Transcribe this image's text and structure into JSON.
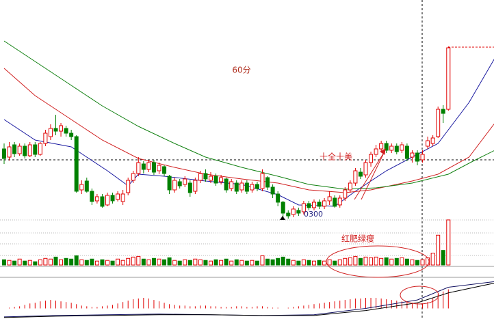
{
  "chart_data": {
    "type": "candlestick",
    "annotations": [
      "60分",
      "十全十美",
      "红肥绿瘦",
      "0300"
    ],
    "up_color": "#e00000",
    "down_color": "#008000",
    "open": [
      11.32,
      11.2,
      11.38,
      11.25,
      11.36,
      11.22,
      11.38,
      11.24,
      11.4,
      11.5,
      11.62,
      11.58,
      11.62,
      11.55,
      11.5,
      10.72,
      10.85,
      10.7,
      10.56,
      10.62,
      10.5,
      10.64,
      10.58,
      10.55,
      10.68,
      10.86,
      10.96,
      11.1,
      11.02,
      11.12,
      11.0,
      11.06,
      10.92,
      10.72,
      10.84,
      10.8,
      10.82,
      10.7,
      10.86,
      10.96,
      10.86,
      10.92,
      10.84,
      10.88,
      10.74,
      10.82,
      10.72,
      10.82,
      10.72,
      10.8,
      10.74,
      10.9,
      10.76,
      10.66,
      10.54,
      10.38,
      10.36,
      10.42,
      10.4,
      10.52,
      10.46,
      10.54,
      10.48,
      10.56,
      10.6,
      10.5,
      10.6,
      10.72,
      10.82,
      10.98,
      10.94,
      11.12,
      11.24,
      11.32,
      11.4,
      11.3,
      11.36,
      11.3,
      11.36,
      11.2,
      11.26,
      11.16,
      11.36,
      11.4,
      11.5,
      11.9,
      11.9
    ],
    "high": [
      11.4,
      11.42,
      11.42,
      11.4,
      11.4,
      11.42,
      11.42,
      11.42,
      11.6,
      11.68,
      11.82,
      11.7,
      11.66,
      11.6,
      11.52,
      10.86,
      10.9,
      10.74,
      10.66,
      10.66,
      10.68,
      10.68,
      10.7,
      10.72,
      10.9,
      11.0,
      11.2,
      11.14,
      11.16,
      11.16,
      11.12,
      11.08,
      10.94,
      10.9,
      10.88,
      10.92,
      10.86,
      10.9,
      11.0,
      11.02,
      10.98,
      10.96,
      10.94,
      10.9,
      10.88,
      10.86,
      10.86,
      10.86,
      10.84,
      10.84,
      11.02,
      10.92,
      10.8,
      10.7,
      10.56,
      10.42,
      10.48,
      10.46,
      10.56,
      10.56,
      10.58,
      10.58,
      10.6,
      10.7,
      10.64,
      10.64,
      10.76,
      10.86,
      11.04,
      11.04,
      11.16,
      11.28,
      11.38,
      11.44,
      11.44,
      11.4,
      11.4,
      11.42,
      11.4,
      11.3,
      11.3,
      11.3,
      11.5,
      11.52,
      11.94,
      11.96,
      12.82
    ],
    "low": [
      11.1,
      11.15,
      11.2,
      11.22,
      11.18,
      11.2,
      11.2,
      11.22,
      11.36,
      11.45,
      11.52,
      11.5,
      11.5,
      11.45,
      10.68,
      10.66,
      10.68,
      10.5,
      10.52,
      10.46,
      10.48,
      10.52,
      10.55,
      10.5,
      10.64,
      10.82,
      10.92,
      10.96,
      10.98,
      10.94,
      10.95,
      10.92,
      10.66,
      10.68,
      10.74,
      10.76,
      10.62,
      10.66,
      10.82,
      10.84,
      10.82,
      10.78,
      10.8,
      10.68,
      10.7,
      10.66,
      10.68,
      10.66,
      10.68,
      10.7,
      10.7,
      10.72,
      10.6,
      10.48,
      10.32,
      10.3,
      10.32,
      10.34,
      10.36,
      10.42,
      10.42,
      10.44,
      10.44,
      10.5,
      10.46,
      10.46,
      10.56,
      10.68,
      10.78,
      10.88,
      10.9,
      11.06,
      11.2,
      11.28,
      11.26,
      11.26,
      11.24,
      11.26,
      11.14,
      11.12,
      11.08,
      11.12,
      11.32,
      11.36,
      11.48,
      11.7,
      11.88
    ],
    "close": [
      11.18,
      11.35,
      11.25,
      11.36,
      11.22,
      11.38,
      11.24,
      11.4,
      11.55,
      11.62,
      11.58,
      11.66,
      11.55,
      11.5,
      10.7,
      10.8,
      10.7,
      10.55,
      10.62,
      10.48,
      10.64,
      10.56,
      10.66,
      10.66,
      10.86,
      10.96,
      11.12,
      11.02,
      11.12,
      10.98,
      11.08,
      10.96,
      10.72,
      10.86,
      10.78,
      10.88,
      10.68,
      10.86,
      10.96,
      10.88,
      10.92,
      10.82,
      10.9,
      10.72,
      10.84,
      10.7,
      10.82,
      10.7,
      10.8,
      10.74,
      10.96,
      10.76,
      10.66,
      10.54,
      10.38,
      10.34,
      10.44,
      10.38,
      10.52,
      10.46,
      10.54,
      10.48,
      10.56,
      10.62,
      10.48,
      10.6,
      10.72,
      10.82,
      11.0,
      10.92,
      11.12,
      11.24,
      11.32,
      11.4,
      11.3,
      11.36,
      11.28,
      11.38,
      11.18,
      11.26,
      11.14,
      11.24,
      11.44,
      11.48,
      11.9,
      11.84,
      12.8
    ],
    "volume": [
      8,
      7,
      6,
      9,
      6,
      7,
      5,
      8,
      10,
      9,
      12,
      8,
      10,
      9,
      14,
      8,
      7,
      9,
      6,
      8,
      7,
      6,
      9,
      7,
      10,
      12,
      13,
      9,
      8,
      10,
      9,
      8,
      11,
      7,
      6,
      8,
      7,
      9,
      8,
      7,
      6,
      8,
      7,
      9,
      6,
      8,
      7,
      6,
      7,
      6,
      14,
      9,
      8,
      10,
      12,
      9,
      7,
      6,
      8,
      7,
      6,
      7,
      6,
      8,
      6,
      8,
      10,
      11,
      13,
      10,
      12,
      11,
      12,
      10,
      11,
      9,
      10,
      11,
      9,
      8,
      7,
      8,
      11,
      18,
      45,
      22,
      68
    ],
    "ylim": [
      10.3,
      13.5
    ],
    "vlim": [
      0,
      70
    ],
    "ma": [
      {
        "color": "#1a1aa0",
        "x": [
          0,
          6,
          13,
          20,
          24,
          26,
          31,
          39,
          46,
          53,
          57,
          64,
          68,
          74,
          79,
          84,
          90,
          95
        ],
        "values": [
          11.75,
          11.45,
          11.35,
          11.0,
          10.78,
          10.95,
          10.92,
          10.85,
          10.8,
          10.65,
          10.5,
          10.48,
          10.7,
          11.0,
          11.2,
          11.4,
          12.0,
          12.65
        ]
      },
      {
        "color": "#d02020",
        "x": [
          0,
          6,
          13,
          19,
          26,
          33,
          39,
          46,
          53,
          59,
          66,
          71,
          79,
          84,
          90,
          95
        ],
        "values": [
          12.5,
          12.1,
          11.75,
          11.45,
          11.18,
          11.05,
          10.95,
          10.88,
          10.82,
          10.72,
          10.68,
          10.72,
          10.85,
          10.95,
          11.2,
          11.7
        ]
      },
      {
        "color": "#108010",
        "x": [
          0,
          6,
          13,
          19,
          26,
          33,
          39,
          46,
          53,
          59,
          66,
          72,
          79,
          86,
          91,
          95
        ],
        "values": [
          12.9,
          12.6,
          12.25,
          11.95,
          11.65,
          11.4,
          11.2,
          11.05,
          10.92,
          10.8,
          10.73,
          10.75,
          10.82,
          10.95,
          11.15,
          11.3
        ]
      }
    ],
    "macd_hist": [
      0,
      1,
      2,
      3,
      5,
      7,
      8,
      10,
      11,
      12,
      11,
      10,
      9,
      8,
      6,
      4,
      3,
      2,
      2,
      3,
      4,
      5,
      7,
      9,
      11,
      13,
      14,
      15,
      14,
      12,
      10,
      8,
      6,
      5,
      4,
      4,
      3,
      3,
      4,
      4,
      3,
      3,
      2,
      2,
      2,
      3,
      3,
      2,
      2,
      3,
      3,
      2,
      1,
      1,
      0,
      1,
      2,
      3,
      4,
      5,
      6,
      7,
      8,
      9,
      10,
      11,
      12,
      13,
      14,
      14,
      15,
      15,
      15,
      14,
      13,
      12,
      11,
      10,
      9,
      8,
      8,
      7,
      9,
      14,
      20,
      24,
      27
    ],
    "macd_lines": [
      {
        "color": "#101060",
        "x": [
          0,
          10,
          20,
          30,
          40,
          50,
          60,
          70,
          80,
          86,
          95
        ],
        "values": [
          -12,
          -10,
          -9,
          -8,
          -9,
          -10,
          -9,
          0,
          12,
          30,
          38
        ]
      },
      {
        "color": "#000000",
        "x": [
          0,
          10,
          20,
          30,
          40,
          50,
          60,
          70,
          80,
          86,
          95
        ],
        "values": [
          -13,
          -11,
          -10,
          -9,
          -9,
          -10,
          -10,
          -3,
          8,
          22,
          36
        ]
      }
    ],
    "macdlim": [
      -15,
      45
    ]
  }
}
